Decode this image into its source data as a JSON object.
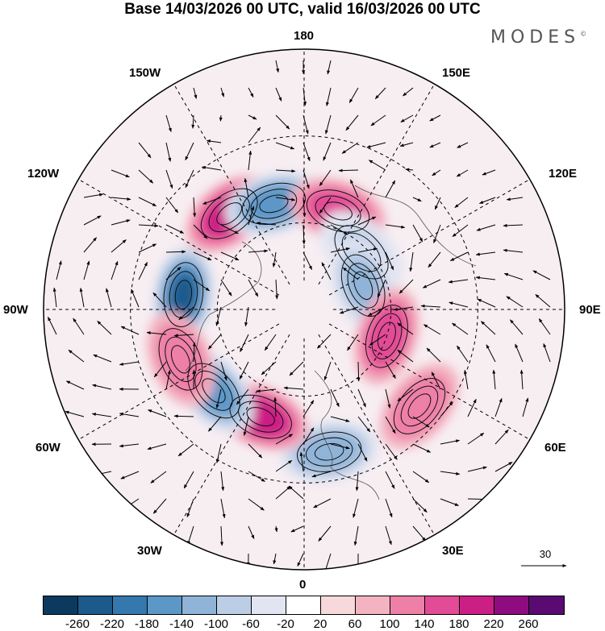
{
  "title": "Base 14/03/2026 00 UTC, valid 16/03/2026 00 UTC",
  "brand": "MODES",
  "brand_mark": "©",
  "longitude_labels": {
    "top": "180",
    "bottom": "0",
    "left": "90W",
    "right": "90E",
    "nw_upper": "150W",
    "nw_lower": "120W",
    "ne_upper": "150E",
    "ne_lower": "120E",
    "sw_upper": "60W",
    "sw_lower": "30W",
    "se_upper": "60E",
    "se_lower": "30E"
  },
  "colorbar": {
    "colors": [
      "#0b3a5e",
      "#1c5a8c",
      "#3478ad",
      "#5b97c7",
      "#8fb4d8",
      "#bccde6",
      "#e2e5f1",
      "#ffffff",
      "#f7d9dc",
      "#f3b3c1",
      "#ee7fa7",
      "#e24b95",
      "#cc1f86",
      "#8e0c7f",
      "#5a0b72"
    ],
    "ticks": [
      "-260",
      "-220",
      "-180",
      "-140",
      "-100",
      "-60",
      "-20",
      "20",
      "60",
      "100",
      "140",
      "180",
      "220",
      "260"
    ]
  },
  "vector_reference": "30",
  "anomaly_centers": [
    {
      "lon": -97,
      "lat": 48,
      "value": -230
    },
    {
      "lon": -142,
      "lat": 48,
      "value": 200
    },
    {
      "lon": -164,
      "lat": 52,
      "value": -180
    },
    {
      "lon": 161,
      "lat": 54,
      "value": 150
    },
    {
      "lon": 135,
      "lat": 62,
      "value": -70
    },
    {
      "lon": 112,
      "lat": 68,
      "value": -120
    },
    {
      "lon": 72,
      "lat": 60,
      "value": 140
    },
    {
      "lon": 50,
      "lat": 38,
      "value": 120
    },
    {
      "lon": 10,
      "lat": 40,
      "value": -130
    },
    {
      "lon": -22,
      "lat": 50,
      "value": 200
    },
    {
      "lon": -48,
      "lat": 48,
      "value": -170
    },
    {
      "lon": -68,
      "lat": 44,
      "value": 100
    }
  ]
}
